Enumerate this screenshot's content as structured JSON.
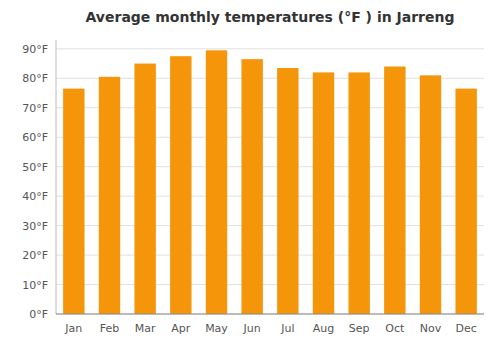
{
  "chart_data": {
    "type": "bar",
    "title": "Average monthly temperatures (°F ) in Jarreng",
    "categories": [
      "Jan",
      "Feb",
      "Mar",
      "Apr",
      "May",
      "Jun",
      "Jul",
      "Aug",
      "Sep",
      "Oct",
      "Nov",
      "Dec"
    ],
    "values": [
      76.5,
      80.5,
      85.0,
      87.5,
      89.5,
      86.5,
      83.5,
      82.0,
      82.0,
      84.0,
      81.0,
      76.5
    ],
    "color": "#F5950A",
    "ylim": [
      0,
      93
    ],
    "yticks": [
      {
        "value": 0,
        "label": "0°F"
      },
      {
        "value": 10,
        "label": "10°F"
      },
      {
        "value": 20,
        "label": "20°F"
      },
      {
        "value": 30,
        "label": "30°F"
      },
      {
        "value": 40,
        "label": "40°F"
      },
      {
        "value": 50,
        "label": "50°F"
      },
      {
        "value": 60,
        "label": "60°F"
      },
      {
        "value": 70,
        "label": "70°F"
      },
      {
        "value": 80,
        "label": "80°F"
      },
      {
        "value": 90,
        "label": "90°F"
      }
    ],
    "grid": true
  }
}
